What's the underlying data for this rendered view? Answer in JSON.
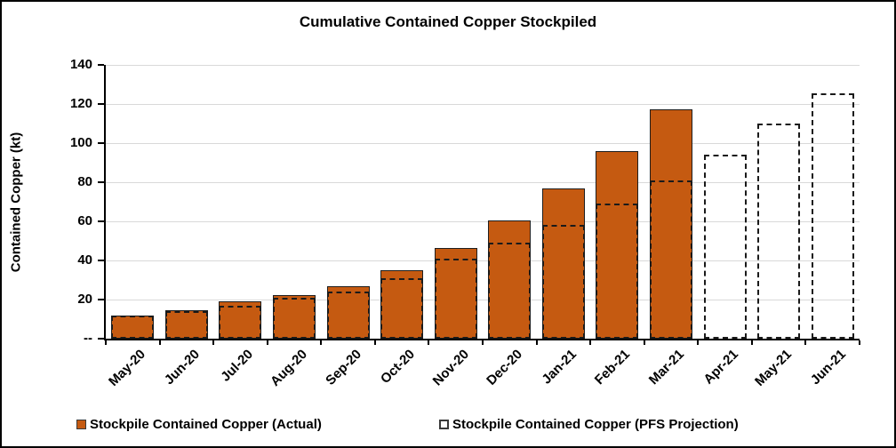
{
  "title": "Cumulative Contained Copper Stockpiled",
  "y_axis": {
    "label": "Contained Copper (kt)",
    "tick_labels": [
      "140",
      "120",
      "100",
      "80",
      "60",
      "40",
      "20",
      "--"
    ],
    "max": 140,
    "step": 20
  },
  "legend": [
    {
      "label": "Stockpile Contained Copper (Actual)",
      "type": "solid"
    },
    {
      "label": "Stockpile Contained Copper (PFS Projection)",
      "type": "dashed"
    }
  ],
  "colors": {
    "actual_fill": "#C55A11",
    "bar_border": "#1E1E1E",
    "dashed": "#1A1A1A",
    "gridline": "#D9D9D9",
    "axis": "#000000"
  },
  "chart_data": {
    "type": "bar",
    "title": "Cumulative Contained Copper Stockpiled",
    "xlabel": "",
    "ylabel": "Contained Copper (kt)",
    "ylim": [
      0,
      140
    ],
    "grid": true,
    "legend_position": "bottom",
    "categories": [
      "May-20",
      "Jun-20",
      "Jul-20",
      "Aug-20",
      "Sep-20",
      "Oct-20",
      "Nov-20",
      "Dec-20",
      "Jan-21",
      "Feb-21",
      "Mar-21",
      "Apr-21",
      "May-21",
      "Jun-21"
    ],
    "series": [
      {
        "name": "Stockpile Contained Copper (Actual)",
        "style": "solid",
        "values": [
          12,
          14.5,
          19,
          22.5,
          27,
          35,
          46.5,
          60.5,
          77,
          96,
          117.5,
          null,
          null,
          null
        ]
      },
      {
        "name": "Stockpile Contained Copper (PFS Projection)",
        "style": "dashed-outline",
        "values": [
          12,
          14,
          17,
          21,
          24,
          31,
          41,
          49,
          58,
          69,
          81,
          94,
          110,
          125.5
        ]
      }
    ]
  }
}
